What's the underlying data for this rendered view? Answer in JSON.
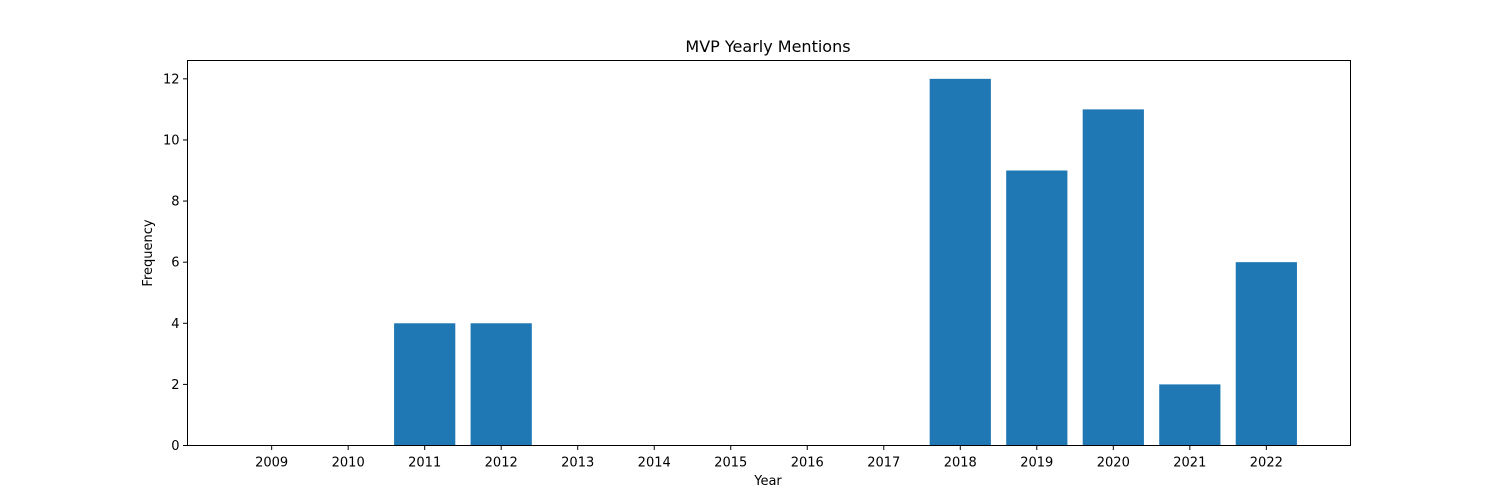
{
  "chart_data": {
    "type": "bar",
    "title": "MVP Yearly Mentions",
    "xlabel": "Year",
    "ylabel": "Frequency",
    "categories": [
      "2009",
      "2010",
      "2011",
      "2012",
      "2013",
      "2014",
      "2015",
      "2016",
      "2017",
      "2018",
      "2019",
      "2020",
      "2021",
      "2022"
    ],
    "values": [
      0,
      0,
      4,
      4,
      0,
      0,
      0,
      0,
      0,
      12,
      9,
      11,
      2,
      6
    ],
    "ylim": [
      0,
      12.6
    ],
    "yticks": [
      0,
      2,
      4,
      6,
      8,
      10,
      12
    ],
    "grid": false,
    "bar_color": "#1f77b4"
  }
}
